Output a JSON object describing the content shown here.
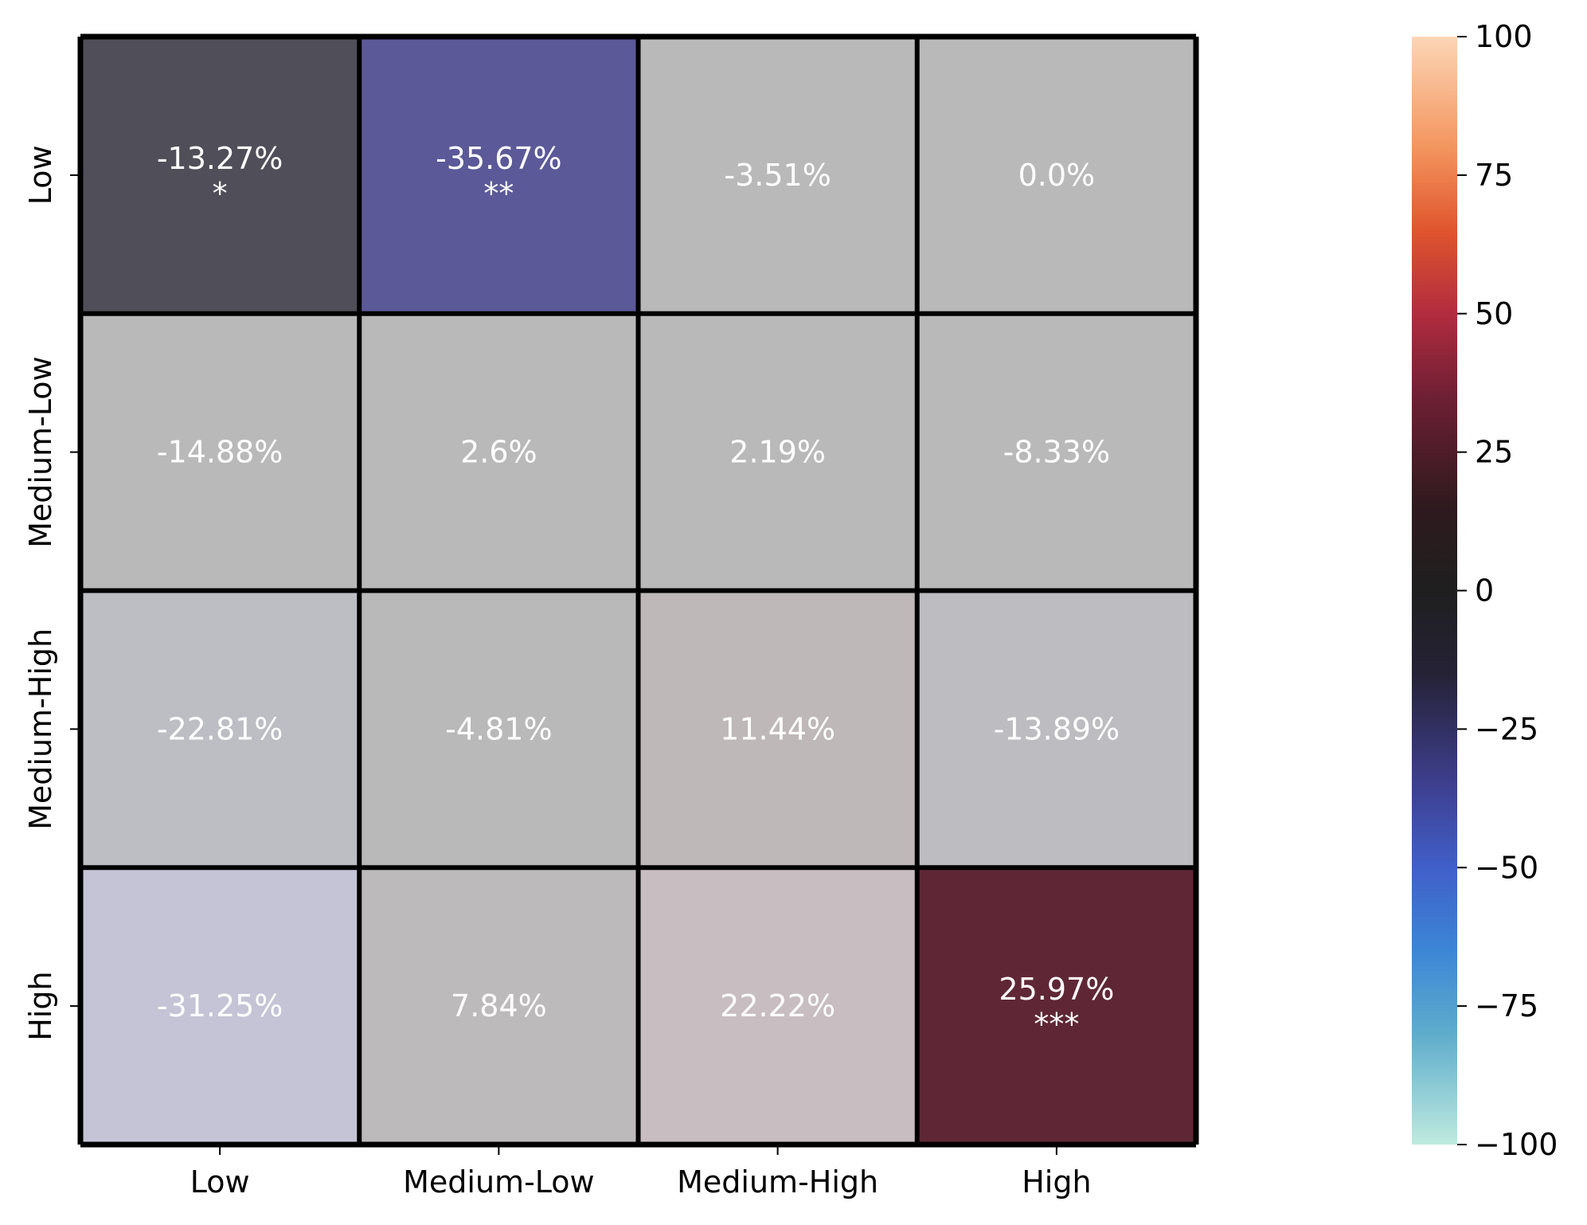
{
  "chart_data": {
    "type": "heatmap",
    "title": "",
    "xlabel": "",
    "ylabel": "",
    "x_categories": [
      "Low",
      "Medium-Low",
      "Medium-High",
      "High"
    ],
    "y_categories": [
      "Low",
      "Medium-Low",
      "Medium-High",
      "High"
    ],
    "values": [
      [
        -13.27,
        -35.67,
        -3.51,
        0.0
      ],
      [
        -14.88,
        2.6,
        2.19,
        -8.33
      ],
      [
        -22.81,
        -4.81,
        11.44,
        -13.89
      ],
      [
        -31.25,
        7.84,
        22.22,
        25.97
      ]
    ],
    "labels": [
      [
        "-13.27%",
        "-35.67%",
        "-3.51%",
        "0.0%"
      ],
      [
        "-14.88%",
        "2.6%",
        "2.19%",
        "-8.33%"
      ],
      [
        "-22.81%",
        "-4.81%",
        "11.44%",
        "-13.89%"
      ],
      [
        "-31.25%",
        "7.84%",
        "22.22%",
        "25.97%"
      ]
    ],
    "significance": [
      [
        "*",
        "**",
        "",
        ""
      ],
      [
        "",
        "",
        "",
        ""
      ],
      [
        "",
        "",
        "",
        ""
      ],
      [
        "",
        "",
        "",
        "***"
      ]
    ],
    "cell_colors": [
      [
        "#504f59",
        "#5b5998",
        "#b9b9b9",
        "#b9b9b9"
      ],
      [
        "#b9b9b9",
        "#b9b9b9",
        "#b9b9b9",
        "#b9b9b9"
      ],
      [
        "#bdbdc4",
        "#b9b9b9",
        "#bfb8b8",
        "#bcbcc1"
      ],
      [
        "#c4c4d6",
        "#bcbaba",
        "#c8bdc0",
        "#5f2735"
      ]
    ],
    "label_color": "#ffffff",
    "grid_line_color": "#000000",
    "colorbar": {
      "vmin": -100,
      "vmax": 100,
      "ticks": [
        100,
        75,
        50,
        25,
        0,
        -25,
        -50,
        -75,
        -100
      ],
      "tick_labels": [
        "100",
        "75",
        "50",
        "25",
        "0",
        "−25",
        "−50",
        "−75",
        "−100"
      ],
      "colormap": "icefire",
      "color_stops": [
        {
          "value": 100,
          "color": "#fcd6b6"
        },
        {
          "value": 80,
          "color": "#f3955e"
        },
        {
          "value": 65,
          "color": "#e0552d"
        },
        {
          "value": 50,
          "color": "#b22c3f"
        },
        {
          "value": 35,
          "color": "#6f1f34"
        },
        {
          "value": 15,
          "color": "#2e1a1e"
        },
        {
          "value": 0,
          "color": "#1f1f1f"
        },
        {
          "value": -15,
          "color": "#252236"
        },
        {
          "value": -35,
          "color": "#3e3f8f"
        },
        {
          "value": -50,
          "color": "#405fc9"
        },
        {
          "value": -65,
          "color": "#3c86d6"
        },
        {
          "value": -80,
          "color": "#5eaccc"
        },
        {
          "value": -100,
          "color": "#bfebdf"
        }
      ]
    }
  }
}
